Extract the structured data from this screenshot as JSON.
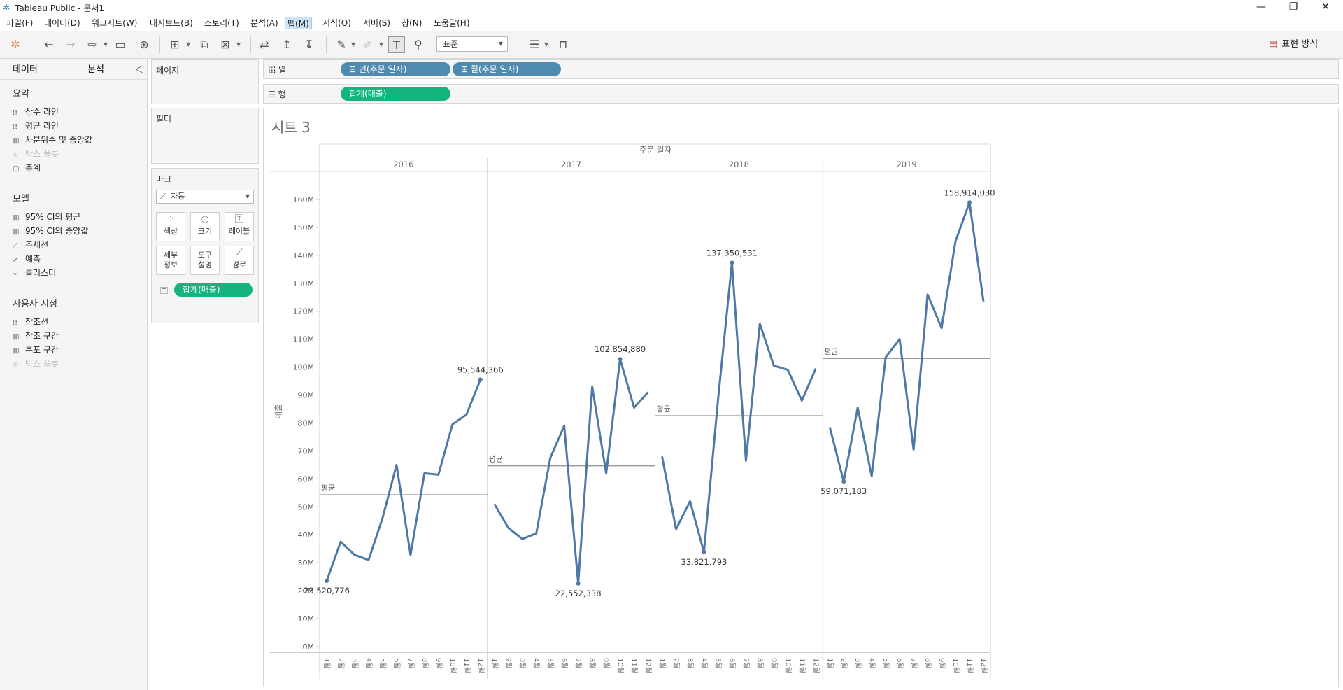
{
  "window": {
    "title": "Tableau Public - 문서1",
    "minimize": "—",
    "restore": "❐",
    "close": "✕"
  },
  "menu": [
    "파일(F)",
    "데이터(D)",
    "워크시트(W)",
    "대시보드(B)",
    "스토리(T)",
    "분석(A)",
    "맵(M)",
    "서식(O)",
    "서버(S)",
    "창(N)",
    "도움말(H)"
  ],
  "toolbar": {
    "fit": "표준",
    "show_me": "표현 방식"
  },
  "left_panel": {
    "tabs": [
      "데이터",
      "분석"
    ],
    "active_tab": "분석",
    "sections": [
      {
        "title": "요약",
        "items": [
          {
            "label": "상수 라인",
            "enabled": true
          },
          {
            "label": "평균 라인",
            "enabled": true
          },
          {
            "label": "사분위수 및 중앙값",
            "enabled": true
          },
          {
            "label": "박스 플롯",
            "enabled": false
          },
          {
            "label": "총계",
            "enabled": true
          }
        ]
      },
      {
        "title": "모델",
        "items": [
          {
            "label": "95% CI의 평균",
            "enabled": true
          },
          {
            "label": "95% CI의 중앙값",
            "enabled": true
          },
          {
            "label": "추세선",
            "enabled": true
          },
          {
            "label": "예측",
            "enabled": true
          },
          {
            "label": "클러스터",
            "enabled": true
          }
        ]
      },
      {
        "title": "사용자 지정",
        "items": [
          {
            "label": "참조선",
            "enabled": true
          },
          {
            "label": "참조 구간",
            "enabled": true
          },
          {
            "label": "분포 구간",
            "enabled": true
          },
          {
            "label": "박스 플롯",
            "enabled": false
          }
        ]
      }
    ]
  },
  "cards": {
    "pages": "페이지",
    "filters": "필터",
    "marks": {
      "title": "마크",
      "type": "자동",
      "buttons": [
        "색상",
        "크기",
        "레이블",
        "세부\n정보",
        "도구\n설명",
        "경로"
      ],
      "label_pill": "합계(매출)"
    }
  },
  "shelves": {
    "columns_label": "열",
    "rows_label": "행",
    "columns": [
      "년(주문 일자)",
      "월(주문 일자)"
    ],
    "rows": [
      "합계(매출)"
    ]
  },
  "sheet": {
    "title": "시트 3",
    "header": "주문 일자",
    "avg_label": "평균",
    "y_axis_label": "매출"
  },
  "chart_data": {
    "type": "line",
    "title": "시트 3",
    "xlabel": "주문 일자",
    "ylabel": "매출",
    "ylim": [
      0,
      170000000
    ],
    "yticks": [
      "0M",
      "10M",
      "20M",
      "30M",
      "40M",
      "50M",
      "60M",
      "70M",
      "80M",
      "90M",
      "100M",
      "110M",
      "120M",
      "130M",
      "140M",
      "150M",
      "160M"
    ],
    "months": [
      "1월",
      "2월",
      "3월",
      "4월",
      "5월",
      "6월",
      "7월",
      "8월",
      "9월",
      "10월",
      "11월",
      "12월"
    ],
    "series": [
      {
        "name": "2016",
        "values": [
          23520776,
          37500000,
          32800000,
          31000000,
          46000000,
          65000000,
          32800000,
          62000000,
          61500000,
          79500000,
          83000000,
          95544366
        ],
        "average": 54300000
      },
      {
        "name": "2017",
        "values": [
          51000000,
          42500000,
          38500000,
          40500000,
          67500000,
          79000000,
          22552338,
          93000000,
          62000000,
          102854880,
          85500000,
          91000000
        ],
        "average": 64700000
      },
      {
        "name": "2018",
        "values": [
          68000000,
          42000000,
          52000000,
          33821793,
          88000000,
          137350531,
          66500000,
          115500000,
          100500000,
          99000000,
          88000000,
          99500000
        ],
        "average": 82600000
      },
      {
        "name": "2019",
        "values": [
          78500000,
          59071183,
          85500000,
          61000000,
          103500000,
          110000000,
          70500000,
          126000000,
          114000000,
          145000000,
          158914030,
          123500000
        ],
        "average": 103100000
      }
    ],
    "data_labels": [
      {
        "series": "2016",
        "month": 1,
        "text": "23,520,776",
        "pos": "below"
      },
      {
        "series": "2016",
        "month": 12,
        "text": "95,544,366",
        "pos": "above"
      },
      {
        "series": "2017",
        "month": 7,
        "text": "22,552,338",
        "pos": "below"
      },
      {
        "series": "2017",
        "month": 10,
        "text": "102,854,880",
        "pos": "above"
      },
      {
        "series": "2018",
        "month": 4,
        "text": "33,821,793",
        "pos": "below"
      },
      {
        "series": "2018",
        "month": 6,
        "text": "137,350,531",
        "pos": "above"
      },
      {
        "series": "2019",
        "month": 2,
        "text": "59,071,183",
        "pos": "below"
      },
      {
        "series": "2019",
        "month": 11,
        "text": "158,914,030",
        "pos": "above"
      }
    ],
    "line_color": "#4e79a7",
    "avg_line_color": "#999999"
  }
}
